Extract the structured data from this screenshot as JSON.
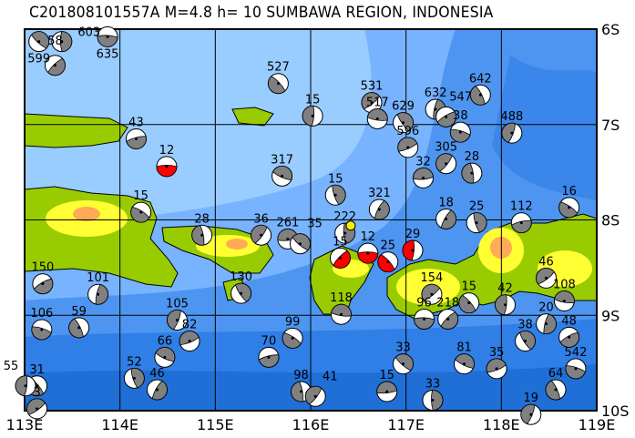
{
  "title": "C201808101557A M=4.8 h= 10 SUMBAWA REGION, INDONESIA",
  "map": {
    "lon_range": [
      113,
      119
    ],
    "lat_range": [
      -10,
      -6
    ],
    "x_ticks": [
      "113E",
      "114E",
      "115E",
      "116E",
      "117E",
      "118E",
      "119E"
    ],
    "y_ticks": [
      "6S",
      "7S",
      "8S",
      "9S",
      "10S"
    ],
    "colors": {
      "shallow_sea": "#99ccff",
      "mid_sea": "#66aaff",
      "deep_sea": "#3388ee",
      "deepest_sea": "#1f6fd6",
      "lowland": "#99cc00",
      "upland": "#ffff33",
      "highland": "#ffaa55",
      "compression_fill": "#808080",
      "highlighted_event_fill": "#ff0000",
      "epicenter_marker": "#ffee00"
    },
    "epicenter": {
      "lon": 116.42,
      "lat": -8.06
    },
    "events": [
      {
        "label": "12",
        "lon": 114.49,
        "lat": -7.44,
        "red": true
      },
      {
        "label": "527",
        "lon": 115.66,
        "lat": -6.57
      },
      {
        "label": "15",
        "lon": 116.02,
        "lat": -6.91
      },
      {
        "label": "531",
        "lon": 116.64,
        "lat": -6.77
      },
      {
        "label": "517",
        "lon": 116.7,
        "lat": -6.94
      },
      {
        "label": "629",
        "lon": 116.97,
        "lat": -6.98
      },
      {
        "label": "632",
        "lon": 117.31,
        "lat": -6.84
      },
      {
        "label": "547",
        "lon": 117.42,
        "lat": -6.92
      },
      {
        "label": "38",
        "lon": 117.57,
        "lat": -7.08
      },
      {
        "label": "642",
        "lon": 117.78,
        "lat": -6.69
      },
      {
        "label": "488",
        "lon": 118.11,
        "lat": -7.09
      },
      {
        "label": "596",
        "lon": 117.02,
        "lat": -7.24
      },
      {
        "label": "317",
        "lon": 115.7,
        "lat": -7.54
      },
      {
        "label": "15",
        "lon": 116.26,
        "lat": -7.74
      },
      {
        "label": "321",
        "lon": 116.72,
        "lat": -7.89
      },
      {
        "label": "43",
        "lon": 114.17,
        "lat": -7.15
      },
      {
        "label": "15",
        "lon": 114.22,
        "lat": -7.92
      },
      {
        "label": "28",
        "lon": 114.86,
        "lat": -8.16
      },
      {
        "label": "36",
        "lon": 115.48,
        "lat": -8.16
      },
      {
        "label": "261",
        "lon": 115.76,
        "lat": -8.2
      },
      {
        "label": "35",
        "lon": 115.89,
        "lat": -8.25
      },
      {
        "label": "222",
        "lon": 116.36,
        "lat": -8.14
      },
      {
        "label": "15",
        "lon": 116.31,
        "lat": -8.4,
        "red": true
      },
      {
        "label": "12",
        "lon": 116.6,
        "lat": -8.35,
        "red": true
      },
      {
        "label": "25",
        "lon": 116.81,
        "lat": -8.44,
        "red": true
      },
      {
        "label": "29",
        "lon": 117.07,
        "lat": -8.32,
        "red": true
      },
      {
        "label": "154",
        "lon": 117.27,
        "lat": -8.78
      },
      {
        "label": "118",
        "lon": 116.32,
        "lat": -8.99
      },
      {
        "label": "130",
        "lon": 115.27,
        "lat": -8.77
      },
      {
        "label": "101",
        "lon": 113.77,
        "lat": -8.78
      },
      {
        "label": "150",
        "lon": 113.19,
        "lat": -8.67
      },
      {
        "label": "106",
        "lon": 113.18,
        "lat": -9.15
      },
      {
        "label": "59",
        "lon": 113.57,
        "lat": -9.13
      },
      {
        "label": "105",
        "lon": 114.6,
        "lat": -9.05
      },
      {
        "label": "82",
        "lon": 114.73,
        "lat": -9.27
      },
      {
        "label": "66",
        "lon": 114.47,
        "lat": -9.44
      },
      {
        "label": "52",
        "lon": 114.15,
        "lat": -9.66
      },
      {
        "label": "46",
        "lon": 114.39,
        "lat": -9.78
      },
      {
        "label": "70",
        "lon": 115.56,
        "lat": -9.44
      },
      {
        "label": "99",
        "lon": 115.81,
        "lat": -9.24
      },
      {
        "label": "98",
        "lon": 115.9,
        "lat": -9.8
      },
      {
        "label": "41",
        "lon": 116.05,
        "lat": -9.85
      },
      {
        "label": "15",
        "lon": 116.8,
        "lat": -9.8
      },
      {
        "label": "33",
        "lon": 116.97,
        "lat": -9.51
      },
      {
        "label": "33",
        "lon": 117.28,
        "lat": -9.89
      },
      {
        "label": "218",
        "lon": 117.44,
        "lat": -9.04
      },
      {
        "label": "96",
        "lon": 117.19,
        "lat": -9.04
      },
      {
        "label": "15",
        "lon": 117.66,
        "lat": -8.87
      },
      {
        "label": "42",
        "lon": 118.04,
        "lat": -8.89
      },
      {
        "label": "46",
        "lon": 118.47,
        "lat": -8.61
      },
      {
        "label": "108",
        "lon": 118.66,
        "lat": -8.85
      },
      {
        "label": "38",
        "lon": 118.25,
        "lat": -9.27
      },
      {
        "label": "20",
        "lon": 118.47,
        "lat": -9.09
      },
      {
        "label": "48",
        "lon": 118.71,
        "lat": -9.23
      },
      {
        "label": "542",
        "lon": 118.78,
        "lat": -9.56
      },
      {
        "label": "64",
        "lon": 118.57,
        "lat": -9.78
      },
      {
        "label": "19",
        "lon": 118.31,
        "lat": -10.04
      },
      {
        "label": "35",
        "lon": 117.95,
        "lat": -9.56
      },
      {
        "label": "81",
        "lon": 117.61,
        "lat": -9.51
      },
      {
        "label": "25",
        "lon": 117.74,
        "lat": -8.03
      },
      {
        "label": "18",
        "lon": 117.42,
        "lat": -7.99
      },
      {
        "label": "112",
        "lon": 118.21,
        "lat": -8.03
      },
      {
        "label": "16",
        "lon": 118.71,
        "lat": -7.87
      },
      {
        "label": "28",
        "lon": 117.69,
        "lat": -7.51
      },
      {
        "label": "305",
        "lon": 117.42,
        "lat": -7.41
      },
      {
        "label": "32",
        "lon": 117.18,
        "lat": -7.56
      },
      {
        "label": "599",
        "lon": 113.15,
        "lat": -6.13
      },
      {
        "label": "603",
        "lon": 113.39,
        "lat": -6.13
      },
      {
        "label": "58",
        "lon": 113.32,
        "lat": -6.38
      },
      {
        "label": "635",
        "lon": 113.87,
        "lat": -6.08
      },
      {
        "label": "31",
        "lon": 113.13,
        "lat": -9.74
      },
      {
        "label": "55",
        "lon": 113.01,
        "lat": -9.74
      },
      {
        "label": "3",
        "lon": 113.13,
        "lat": -9.98
      }
    ]
  }
}
